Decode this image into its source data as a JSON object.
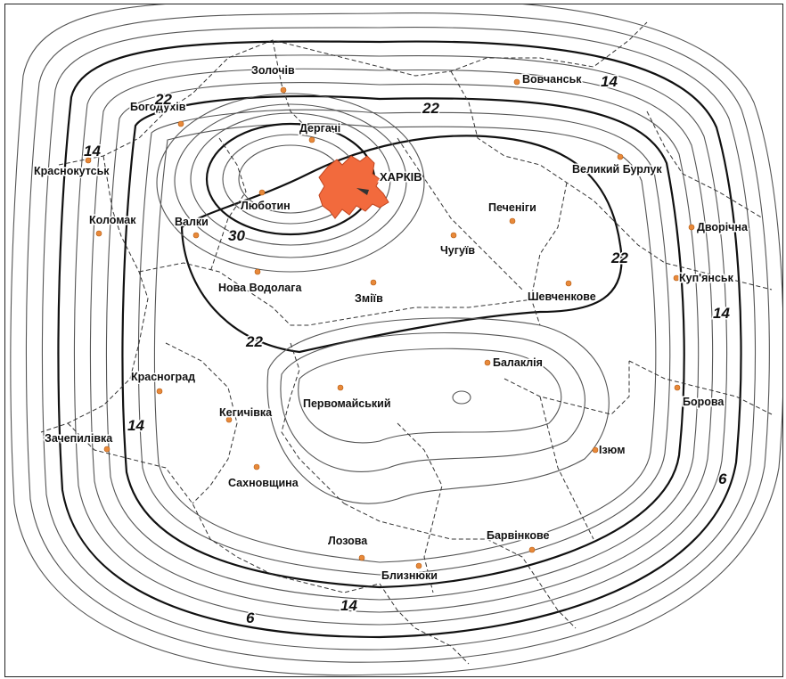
{
  "map": {
    "cities": [
      {
        "id": "zolochiv",
        "name": "Золочів"
      },
      {
        "id": "vovchansk",
        "name": "Вовчанськ"
      },
      {
        "id": "bohodukhiv",
        "name": "Богодухів"
      },
      {
        "id": "derhachi",
        "name": "Дергачі"
      },
      {
        "id": "krasnokutsk",
        "name": "Краснокутськ"
      },
      {
        "id": "kharkiv",
        "name": "ХАРКІВ"
      },
      {
        "id": "velykyi-burluk",
        "name": "Великий Бурлук"
      },
      {
        "id": "liubotyn",
        "name": "Люботин"
      },
      {
        "id": "pechenihy",
        "name": "Печеніги"
      },
      {
        "id": "kolomak",
        "name": "Коломак"
      },
      {
        "id": "valky",
        "name": "Валки"
      },
      {
        "id": "chuhuiv",
        "name": "Чугуїв"
      },
      {
        "id": "dvorichna",
        "name": "Дворічна"
      },
      {
        "id": "nova-vodolaha",
        "name": "Нова Водолага"
      },
      {
        "id": "zmiiv",
        "name": "Зміїв"
      },
      {
        "id": "shevchenkove",
        "name": "Шевченкове"
      },
      {
        "id": "kupiansk",
        "name": "Куп'янськ"
      },
      {
        "id": "balakliia",
        "name": "Балаклія"
      },
      {
        "id": "krasnohrad",
        "name": "Красноград"
      },
      {
        "id": "pervomaiskyi",
        "name": "Первомайський"
      },
      {
        "id": "borova",
        "name": "Борова"
      },
      {
        "id": "kehychivka",
        "name": "Кегичівка"
      },
      {
        "id": "zachepylivka",
        "name": "Зачепилівка"
      },
      {
        "id": "izium",
        "name": "Ізюм"
      },
      {
        "id": "sakhnovshchyna",
        "name": "Сахновщина"
      },
      {
        "id": "lozova",
        "name": "Лозова"
      },
      {
        "id": "barvinkove",
        "name": "Барвінкове"
      },
      {
        "id": "blyzniuky",
        "name": "Близнюки"
      }
    ],
    "isoline_labels": [
      {
        "id": "14-vovchansk",
        "text": "14"
      },
      {
        "id": "22-north",
        "text": "22"
      },
      {
        "id": "22-nw",
        "text": "22"
      },
      {
        "id": "14-west",
        "text": "14"
      },
      {
        "id": "30",
        "text": "30"
      },
      {
        "id": "22-east",
        "text": "22"
      },
      {
        "id": "14-east",
        "text": "14"
      },
      {
        "id": "22-sw",
        "text": "22"
      },
      {
        "id": "14-sw",
        "text": "14"
      },
      {
        "id": "6-east",
        "text": "6"
      },
      {
        "id": "14-south",
        "text": "14"
      },
      {
        "id": "6-south",
        "text": "6"
      }
    ],
    "colors": {
      "kharkiv_fill": "#f26a3d",
      "town_marker": "#e8893a"
    }
  }
}
